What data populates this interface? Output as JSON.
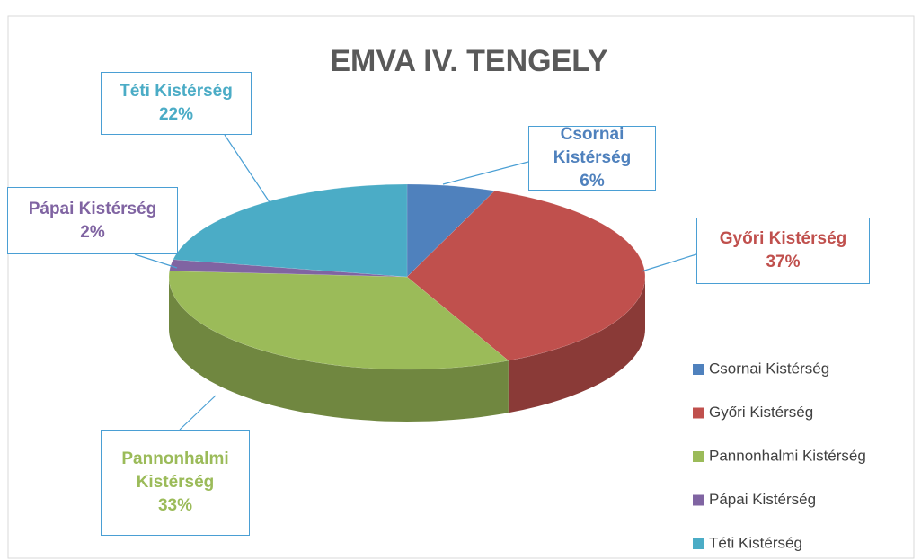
{
  "chart_data": {
    "type": "pie",
    "title": "EMVA IV. TENGELY",
    "categories": [
      "Csornai Kistérség",
      "Győri Kistérség",
      "Pannonhalmi Kistérség",
      "Pápai Kistérség",
      "Téti Kistérség"
    ],
    "values": [
      6,
      37,
      33,
      2,
      22
    ],
    "value_labels": [
      "6%",
      "37%",
      "33%",
      "2%",
      "22%"
    ],
    "colors": [
      "#4f81bd",
      "#c0504d",
      "#9bbb59",
      "#8064a2",
      "#4bacc6"
    ],
    "legend": "right"
  }
}
